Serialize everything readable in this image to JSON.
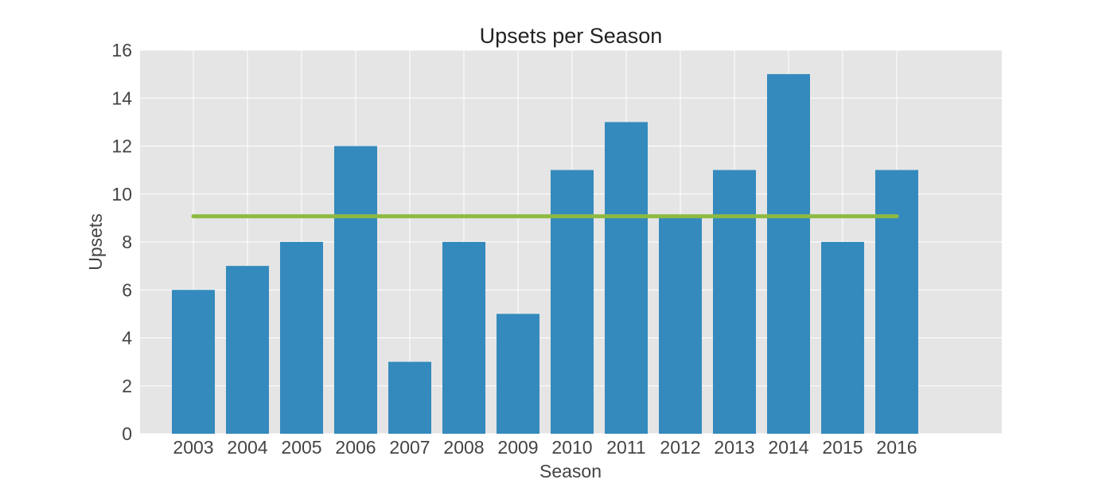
{
  "chart_data": {
    "type": "bar",
    "title": "Upsets per Season",
    "xlabel": "Season",
    "ylabel": "Upsets",
    "categories": [
      "2003",
      "2004",
      "2005",
      "2006",
      "2007",
      "2008",
      "2009",
      "2010",
      "2011",
      "2012",
      "2013",
      "2014",
      "2015",
      "2016"
    ],
    "values": [
      6,
      7,
      8,
      12,
      3,
      8,
      5,
      11,
      13,
      9,
      11,
      15,
      8,
      11
    ],
    "ylim": [
      0,
      16
    ],
    "yticks": [
      0,
      2,
      4,
      6,
      8,
      10,
      12,
      14,
      16
    ],
    "average_line": 9.07,
    "grid": true,
    "colors": {
      "bar": "#348abd",
      "average_line": "#8eba42",
      "plot_background": "#e5e5e5",
      "grid": "#ffffff"
    }
  }
}
